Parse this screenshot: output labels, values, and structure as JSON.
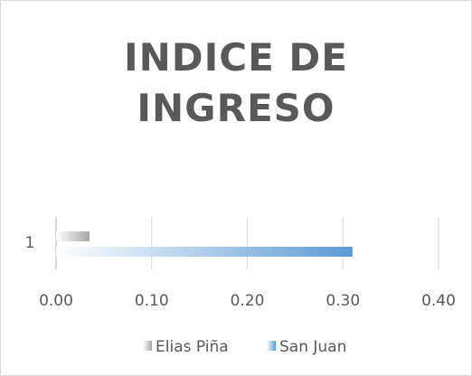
{
  "chart_data": {
    "type": "barh",
    "title": "INDICE DE INGRESO",
    "categories": [
      "1"
    ],
    "series": [
      {
        "name": "Elias Piña",
        "color": "#a6a6a6",
        "values": [
          0.035
        ]
      },
      {
        "name": "San Juan",
        "color": "#5b9bd5",
        "values": [
          0.31
        ]
      }
    ],
    "xlim": [
      0,
      0.4
    ],
    "xticks": [
      {
        "value": 0,
        "label": "0.00"
      },
      {
        "value": 0.1,
        "label": "0.10"
      },
      {
        "value": 0.2,
        "label": "0.20"
      },
      {
        "value": 0.3,
        "label": "0.30"
      },
      {
        "value": 0.4,
        "label": "0.40"
      }
    ],
    "grid": true,
    "legend": "bottom"
  }
}
